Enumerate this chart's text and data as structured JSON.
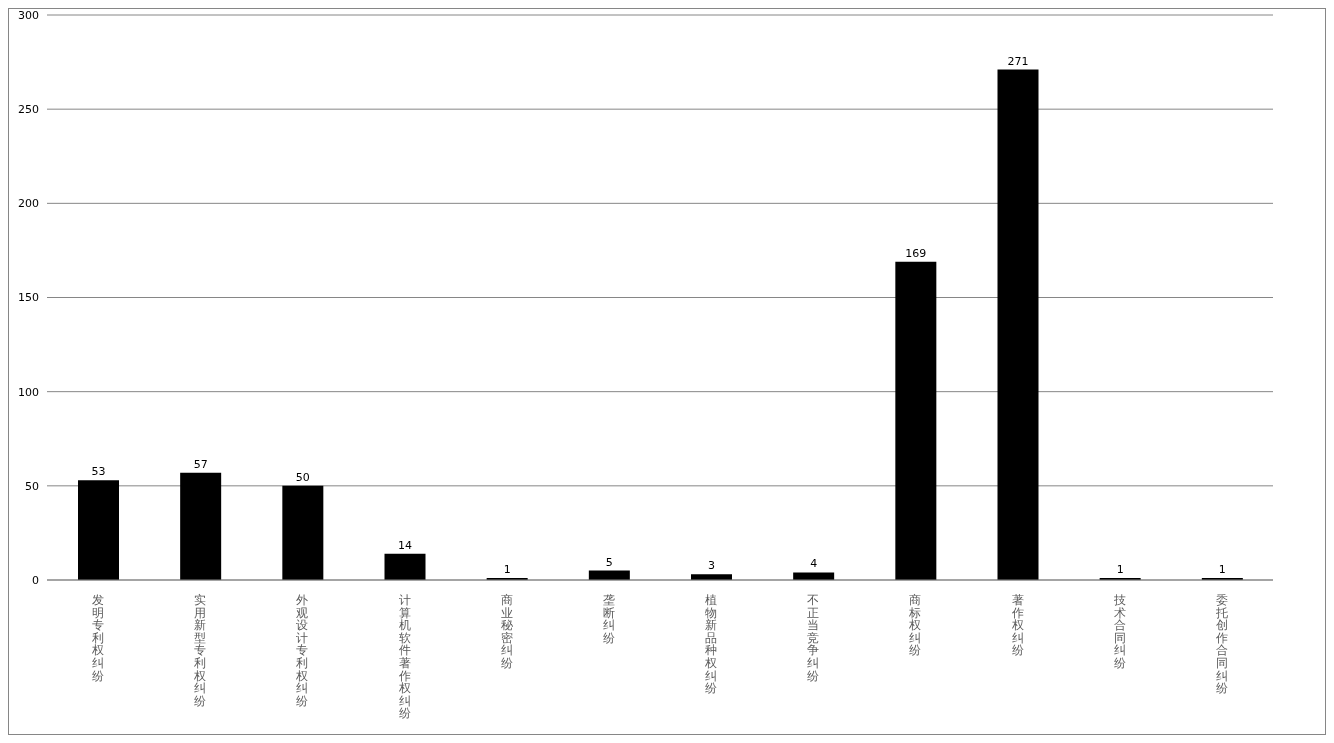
{
  "chart_data": {
    "type": "bar",
    "categories": [
      "发明专利权纠纷",
      "实用新型专利权纠纷",
      "外观设计专利权纠纷",
      "计算机软件著作权纠纷",
      "商业秘密纠纷",
      "垄断纠纷",
      "植物新品种权纠纷",
      "不正当竞争纠纷",
      "商标权纠纷",
      "著作权纠纷",
      "技术合同纠纷",
      "委托创作合同纠纷"
    ],
    "values": [
      53,
      57,
      50,
      14,
      1,
      5,
      3,
      4,
      169,
      271,
      1,
      1
    ],
    "color": "#000000",
    "ylim": [
      0,
      300
    ],
    "yticks": [
      0,
      50,
      100,
      150,
      200,
      250,
      300
    ],
    "grid": "y",
    "data_labels": true
  }
}
